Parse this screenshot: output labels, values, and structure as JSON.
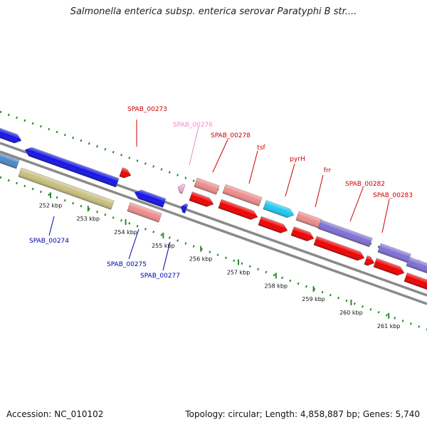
{
  "title": "Salmonella enterica subsp. enterica serovar Paratyphi B str....",
  "footer": {
    "accession": "Accession: NC_010102",
    "topology": "Topology: circular; Length: 4,858,887 bp; Genes: 5,740"
  },
  "colors": {
    "backbone": "#8a8a8a",
    "dots": "#2a8a2a",
    "dark_blue": "#1414e6",
    "steel_blue": "#4f86c8",
    "olive": "#c8c07e",
    "red": "#f00000",
    "salmon": "#ef8c8c",
    "pink": "#f7a8d8",
    "cyan": "#1ec8f0",
    "purple": "#7f6fd6",
    "label_red": "#cc0000",
    "label_blue": "#0000aa",
    "label_pink": "#ee88cc"
  },
  "ticks": [
    {
      "label": "252 kbp"
    },
    {
      "label": "253 kbp"
    },
    {
      "label": "254 kbp"
    },
    {
      "label": "255 kbp"
    },
    {
      "label": "256 kbp"
    },
    {
      "label": "257 kbp"
    },
    {
      "label": "258 kbp"
    },
    {
      "label": "259 kbp"
    },
    {
      "label": "260 kbp"
    },
    {
      "label": "261 kbp"
    }
  ],
  "gene_labels": [
    {
      "text": "SPAB_00273",
      "color": "label_red"
    },
    {
      "text": "SPAB_00276",
      "color": "label_pink"
    },
    {
      "text": "SPAB_00278",
      "color": "label_red"
    },
    {
      "text": "tsf",
      "color": "label_red"
    },
    {
      "text": "pyrH",
      "color": "label_red"
    },
    {
      "text": "frr",
      "color": "label_red"
    },
    {
      "text": "SPAB_00282",
      "color": "label_red"
    },
    {
      "text": "SPAB_00283",
      "color": "label_red"
    },
    {
      "text": "SPAB_00274",
      "color": "label_blue"
    },
    {
      "text": "SPAB_00275",
      "color": "label_blue"
    },
    {
      "text": "SPAB_00277",
      "color": "label_blue"
    }
  ]
}
